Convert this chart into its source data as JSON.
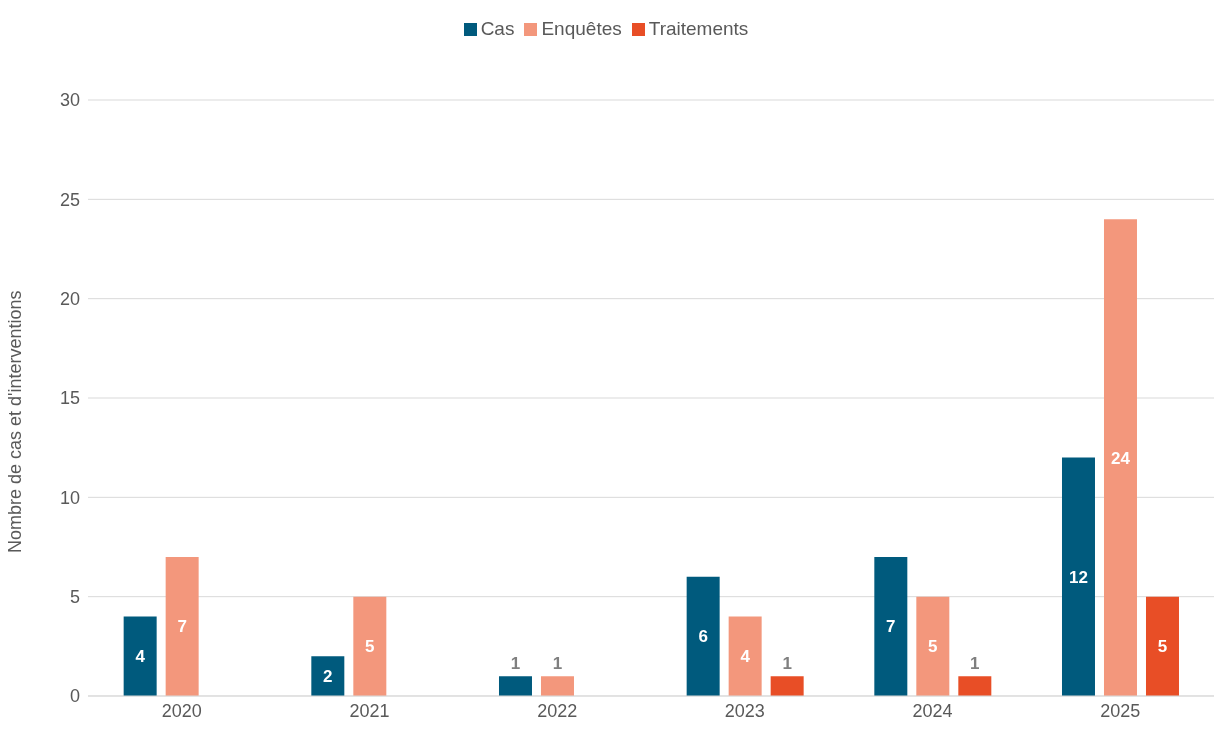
{
  "chart_data": {
    "type": "bar",
    "ylabel": "Nombre de cas et d'interventions",
    "categories": [
      "2020",
      "2021",
      "2022",
      "2023",
      "2024",
      "2025"
    ],
    "series": [
      {
        "name": "Cas",
        "color": "#005a7d",
        "values": [
          4,
          2,
          1,
          6,
          7,
          12
        ]
      },
      {
        "name": "Enquêtes",
        "color": "#f3977c",
        "values": [
          7,
          5,
          1,
          4,
          5,
          24
        ]
      },
      {
        "name": "Traitements",
        "color": "#e84e26",
        "values": [
          null,
          null,
          null,
          1,
          1,
          5
        ]
      }
    ],
    "ylim": [
      0,
      30
    ],
    "yticks": [
      0,
      5,
      10,
      15,
      20,
      25,
      30
    ],
    "grid": "y",
    "legend": "top",
    "data_labels": true
  }
}
